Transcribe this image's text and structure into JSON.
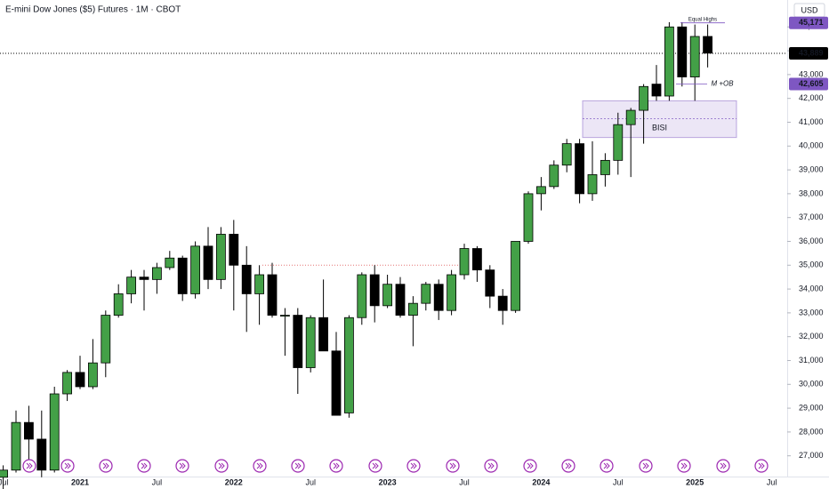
{
  "chart_data": {
    "type": "candlestick",
    "title": "E-mini Dow Jones ($5) Futures · 1M · CBOT",
    "currency": "USD",
    "categories": [
      "Jul",
      null,
      null,
      null,
      null,
      null,
      "2021",
      null,
      null,
      null,
      null,
      null,
      "Jul",
      null,
      null,
      null,
      null,
      null,
      "2022",
      null,
      null,
      null,
      null,
      null,
      "Jul",
      null,
      null,
      null,
      null,
      null,
      "2023",
      null,
      null,
      null,
      null,
      null,
      "Jul",
      null,
      null,
      null,
      null,
      null,
      "2024",
      null,
      null,
      null,
      null,
      null,
      "Jul",
      null,
      null,
      null,
      null,
      null,
      "2025",
      null,
      null,
      null,
      null,
      null,
      "Jul"
    ],
    "open": [
      26100,
      26400,
      28400,
      27700,
      26400,
      29600,
      30500,
      29900,
      30900,
      32900,
      33800,
      34500,
      34400,
      34900,
      35300,
      33800,
      35800,
      34400,
      36300,
      35000,
      33800,
      34600,
      32900,
      32900,
      30700,
      32800,
      31400,
      28800,
      32800,
      34600,
      33300,
      34200,
      32900,
      33400,
      34200,
      33100,
      34600,
      35700,
      34800,
      33700,
      33100,
      36000,
      38000,
      38300,
      39200,
      40100,
      38000,
      38800,
      39400,
      40900,
      41500,
      42600,
      42100,
      45000,
      42900,
      44600,
      null,
      null,
      null,
      null,
      null
    ],
    "high": [
      26600,
      28900,
      29100,
      28900,
      29900,
      30600,
      31200,
      31900,
      33100,
      34200,
      34800,
      34800,
      35100,
      35600,
      35400,
      36000,
      36600,
      36600,
      36900,
      35800,
      35000,
      35100,
      33200,
      33200,
      32900,
      34400,
      32200,
      32900,
      34700,
      35000,
      34600,
      34500,
      33700,
      34300,
      34400,
      34800,
      35900,
      35800,
      35000,
      34000,
      36000,
      38100,
      38700,
      39400,
      40300,
      40300,
      40200,
      39700,
      41400,
      41600,
      42600,
      43400,
      45200,
      45200,
      45100,
      45100,
      null,
      null,
      null,
      null,
      null
    ],
    "low": [
      25600,
      26300,
      26500,
      26100,
      26300,
      29300,
      29800,
      29800,
      30300,
      32800,
      33400,
      33100,
      33800,
      34800,
      33500,
      33600,
      34000,
      34000,
      33100,
      32200,
      32500,
      32800,
      31200,
      29600,
      30500,
      31500,
      28800,
      28600,
      32500,
      32600,
      33200,
      32800,
      31600,
      33100,
      32700,
      32900,
      34400,
      34300,
      33200,
      32500,
      33000,
      35900,
      37300,
      38200,
      38900,
      37600,
      37700,
      38300,
      38800,
      38700,
      40100,
      41900,
      41900,
      42500,
      41900,
      43300,
      null,
      null,
      null,
      null,
      null
    ],
    "close": [
      26400,
      28400,
      27700,
      26400,
      29600,
      30500,
      29900,
      30900,
      32900,
      33800,
      34500,
      34400,
      34900,
      35300,
      33800,
      35800,
      34400,
      36300,
      35000,
      33800,
      34600,
      32900,
      32900,
      30700,
      32800,
      31400,
      28700,
      32800,
      34600,
      33300,
      34200,
      32900,
      33400,
      34200,
      33100,
      34600,
      35700,
      34800,
      33700,
      33100,
      36000,
      38000,
      38300,
      39200,
      40100,
      38000,
      38800,
      39400,
      40900,
      41500,
      42500,
      42100,
      45000,
      42900,
      44600,
      43900,
      null,
      null,
      null,
      null,
      null
    ],
    "up_color": "#43a047",
    "down_color": "#000000",
    "ylim": [
      26130,
      46130
    ],
    "yticks": [
      {
        "value": 27000,
        "label": "27,000"
      },
      {
        "value": 28000,
        "label": "28,000"
      },
      {
        "value": 29000,
        "label": "29,000"
      },
      {
        "value": 30000,
        "label": "30,000"
      },
      {
        "value": 31000,
        "label": "31,000"
      },
      {
        "value": 32000,
        "label": "32,000"
      },
      {
        "value": 33000,
        "label": "33,000"
      },
      {
        "value": 34000,
        "label": "34,000"
      },
      {
        "value": 35000,
        "label": "35,000"
      },
      {
        "value": 36000,
        "label": "36,000"
      },
      {
        "value": 37000,
        "label": "37,000"
      },
      {
        "value": 38000,
        "label": "38,000"
      },
      {
        "value": 39000,
        "label": "39,000"
      },
      {
        "value": 40000,
        "label": "40,000"
      },
      {
        "value": 41000,
        "label": "41,000"
      },
      {
        "value": 42000,
        "label": "42,000"
      },
      {
        "value": 43000,
        "label": "43,000"
      },
      {
        "value": 44000,
        "label": "44,000"
      },
      {
        "value": 45000,
        "label": "45,000"
      }
    ],
    "price_levels": [
      {
        "value": 45171,
        "label": "45,171",
        "color": "#7e57c2"
      },
      {
        "value": 43889,
        "label": "43,889",
        "color": "#000000"
      },
      {
        "value": 42605,
        "label": "42,605",
        "color": "#7e57c2"
      }
    ],
    "reference_line": 35000,
    "annotations": [
      {
        "text": "Equal Highs",
        "value": 45171
      },
      {
        "text": "M +OB",
        "value": 42605
      }
    ],
    "zone": {
      "label": "BISI",
      "high": 41900,
      "low": 40360,
      "mid": 41150,
      "color": "#7e57c2"
    }
  }
}
